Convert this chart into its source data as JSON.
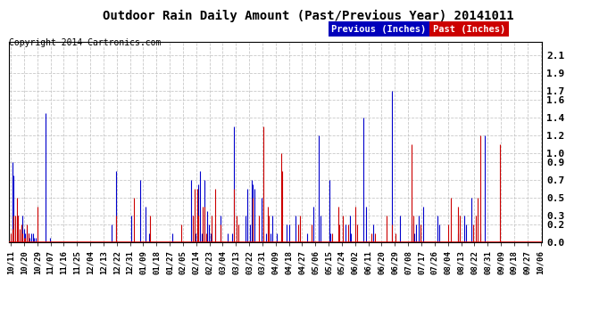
{
  "title": "Outdoor Rain Daily Amount (Past/Previous Year) 20141011",
  "copyright": "Copyright 2014 Cartronics.com",
  "legend_prev_label": "Previous (Inches)",
  "legend_past_label": "Past (Inches)",
  "legend_prev_bg": "#0000bb",
  "legend_past_bg": "#cc0000",
  "legend_text_color": "#ffffff",
  "yticks": [
    0.0,
    0.2,
    0.3,
    0.5,
    0.7,
    0.9,
    1.0,
    1.2,
    1.4,
    1.6,
    1.7,
    1.9,
    2.1
  ],
  "ylim": [
    0.0,
    2.25
  ],
  "background_color": "#ffffff",
  "plot_bg": "#ffffff",
  "grid_color": "#bbbbbb",
  "line_color_blue": "#0000cc",
  "line_color_red": "#cc0000",
  "xtick_labels": [
    "10/11",
    "10/20",
    "10/29",
    "11/07",
    "11/16",
    "11/25",
    "12/04",
    "12/13",
    "12/22",
    "12/31",
    "01/09",
    "01/18",
    "01/27",
    "02/05",
    "02/14",
    "02/23",
    "03/04",
    "03/13",
    "03/22",
    "03/31",
    "04/09",
    "04/18",
    "04/27",
    "05/06",
    "05/15",
    "05/24",
    "06/02",
    "06/11",
    "06/20",
    "06/29",
    "07/08",
    "07/17",
    "07/26",
    "08/04",
    "08/13",
    "08/22",
    "08/31",
    "09/09",
    "09/18",
    "09/27",
    "10/06"
  ],
  "blue_data": [
    0.0,
    0.9,
    0.75,
    0.0,
    0.0,
    0.3,
    0.1,
    0.15,
    0.3,
    0.15,
    0.1,
    0.15,
    0.1,
    0.05,
    0.1,
    0.1,
    0.05,
    0.05,
    0.0,
    0.0,
    0.0,
    0.0,
    0.0,
    0.0,
    1.45,
    0.0,
    0.0,
    0.05,
    0.0,
    0.0,
    0.0,
    0.0,
    0.0,
    0.0,
    0.0,
    0.0,
    0.0,
    0.0,
    0.0,
    0.0,
    0.0,
    0.0,
    0.0,
    0.0,
    0.0,
    0.0,
    0.0,
    0.0,
    0.0,
    0.0,
    0.0,
    0.0,
    0.0,
    0.0,
    0.0,
    0.0,
    0.0,
    0.0,
    0.0,
    0.0,
    0.0,
    0.0,
    0.0,
    0.0,
    0.0,
    0.0,
    0.0,
    0.0,
    0.0,
    0.2,
    0.0,
    0.0,
    0.8,
    0.0,
    0.0,
    0.0,
    0.0,
    0.0,
    0.0,
    0.0,
    0.0,
    0.0,
    0.3,
    0.0,
    0.0,
    0.0,
    0.0,
    0.0,
    0.7,
    0.0,
    0.0,
    0.0,
    0.4,
    0.0,
    0.1,
    0.0,
    0.0,
    0.0,
    0.0,
    0.0,
    0.0,
    0.0,
    0.0,
    0.0,
    0.0,
    0.0,
    0.0,
    0.0,
    0.0,
    0.0,
    0.1,
    0.0,
    0.0,
    0.0,
    0.0,
    0.0,
    0.0,
    0.0,
    0.0,
    0.0,
    0.0,
    0.0,
    0.0,
    0.7,
    0.3,
    0.0,
    0.1,
    0.0,
    0.65,
    0.8,
    0.1,
    0.0,
    0.7,
    0.0,
    0.35,
    0.2,
    0.1,
    0.0,
    0.0,
    0.2,
    0.0,
    0.0,
    0.0,
    0.3,
    0.0,
    0.0,
    0.0,
    0.0,
    0.1,
    0.0,
    0.0,
    0.1,
    1.3,
    0.0,
    0.0,
    0.0,
    0.0,
    0.0,
    0.0,
    0.0,
    0.3,
    0.6,
    0.0,
    0.2,
    0.7,
    0.65,
    0.6,
    0.0,
    0.0,
    0.0,
    0.0,
    0.5,
    0.0,
    0.0,
    0.1,
    0.0,
    0.0,
    0.1,
    0.3,
    0.0,
    0.0,
    0.1,
    0.0,
    0.0,
    0.0,
    0.0,
    0.0,
    0.0,
    0.2,
    0.0,
    0.2,
    0.0,
    0.0,
    0.0,
    0.3,
    0.0,
    0.0,
    0.0,
    0.0,
    0.0,
    0.0,
    0.0,
    0.1,
    0.0,
    0.0,
    0.0,
    0.4,
    0.0,
    0.0,
    0.0,
    1.2,
    0.3,
    0.0,
    0.0,
    0.0,
    0.0,
    0.0,
    0.7,
    0.1,
    0.0,
    0.0,
    0.0,
    0.0,
    0.0,
    0.0,
    0.0,
    0.0,
    0.0,
    0.2,
    0.0,
    0.0,
    0.3,
    0.1,
    0.0,
    0.0,
    0.0,
    0.0,
    0.0,
    0.0,
    0.0,
    1.4,
    0.0,
    0.4,
    0.0,
    0.0,
    0.0,
    0.0,
    0.2,
    0.0,
    0.0,
    0.0,
    0.0,
    0.0,
    0.0,
    0.0,
    0.0,
    0.0,
    0.0,
    0.0,
    0.0,
    1.7,
    0.0,
    0.0,
    0.0,
    0.0,
    0.3,
    0.0,
    0.0,
    0.0,
    0.0,
    0.0,
    0.0,
    0.0,
    0.2,
    0.0,
    0.1,
    0.2,
    0.0,
    0.3,
    0.1,
    0.0,
    0.4,
    0.0,
    0.0,
    0.0,
    0.0,
    0.0,
    0.0,
    0.0,
    0.0,
    0.0,
    0.3,
    0.2,
    0.0,
    0.0,
    0.0,
    0.0,
    0.0,
    0.0,
    0.0,
    0.0,
    0.0,
    0.0,
    0.0,
    0.0,
    0.1,
    0.0,
    0.0,
    0.0,
    0.3,
    0.2,
    0.0,
    0.0,
    0.0,
    0.5,
    0.0,
    0.0,
    0.0,
    0.0,
    0.0,
    0.1,
    0.0,
    0.0,
    1.2,
    0.0,
    0.0,
    0.0,
    0.0,
    0.0,
    0.0,
    0.0,
    0.0,
    0.0,
    0.0,
    0.0,
    0.0,
    0.0,
    0.0,
    0.0,
    0.0,
    0.0,
    0.0,
    0.0,
    0.0,
    0.0,
    0.0,
    0.0,
    0.0,
    0.0,
    0.0,
    0.0,
    0.0,
    0.0,
    0.0,
    0.0,
    0.0,
    0.0,
    0.0,
    0.0,
    0.0,
    0.0,
    0.0
  ],
  "red_data": [
    0.1,
    0.15,
    0.3,
    0.3,
    0.5,
    0.3,
    0.15,
    0.2,
    0.1,
    0.05,
    0.05,
    0.2,
    0.1,
    0.0,
    0.0,
    0.0,
    0.0,
    0.0,
    0.4,
    0.0,
    0.0,
    0.0,
    0.0,
    0.0,
    0.0,
    0.0,
    0.0,
    0.0,
    0.0,
    0.0,
    0.0,
    0.0,
    0.0,
    0.0,
    0.0,
    0.0,
    0.0,
    0.0,
    0.0,
    0.0,
    0.0,
    0.0,
    0.0,
    0.0,
    0.0,
    0.0,
    0.0,
    0.0,
    0.0,
    0.0,
    0.0,
    0.0,
    0.0,
    0.0,
    0.0,
    0.0,
    0.0,
    0.0,
    0.0,
    0.0,
    0.0,
    0.0,
    0.0,
    0.0,
    0.0,
    0.0,
    0.0,
    0.0,
    0.0,
    0.0,
    0.0,
    0.0,
    0.3,
    0.0,
    0.0,
    0.0,
    0.0,
    0.0,
    0.0,
    0.0,
    0.0,
    0.0,
    0.0,
    0.0,
    0.5,
    0.0,
    0.0,
    0.0,
    0.0,
    0.0,
    0.0,
    0.0,
    0.0,
    0.0,
    0.0,
    0.3,
    0.0,
    0.0,
    0.0,
    0.0,
    0.0,
    0.0,
    0.0,
    0.0,
    0.0,
    0.0,
    0.0,
    0.0,
    0.0,
    0.0,
    0.0,
    0.0,
    0.0,
    0.0,
    0.0,
    0.0,
    0.2,
    0.0,
    0.0,
    0.0,
    0.0,
    0.0,
    0.0,
    0.0,
    0.3,
    0.6,
    0.0,
    0.6,
    0.3,
    0.0,
    0.0,
    0.4,
    0.4,
    0.1,
    0.0,
    0.0,
    0.0,
    0.3,
    0.0,
    0.6,
    0.0,
    0.0,
    0.0,
    0.2,
    0.0,
    0.0,
    0.0,
    0.0,
    0.0,
    0.0,
    0.0,
    0.0,
    0.6,
    0.0,
    0.3,
    0.2,
    0.0,
    0.0,
    0.0,
    0.0,
    0.0,
    0.0,
    0.0,
    0.0,
    0.0,
    0.5,
    0.0,
    0.0,
    0.0,
    0.3,
    0.0,
    0.0,
    1.3,
    0.0,
    0.0,
    0.4,
    0.3,
    0.0,
    0.0,
    0.0,
    0.0,
    0.0,
    0.0,
    0.0,
    1.0,
    0.8,
    0.0,
    0.0,
    0.0,
    0.0,
    0.0,
    0.0,
    0.0,
    0.0,
    0.0,
    0.0,
    0.2,
    0.3,
    0.0,
    0.0,
    0.0,
    0.0,
    0.0,
    0.0,
    0.0,
    0.2,
    0.0,
    0.0,
    0.0,
    0.0,
    0.0,
    0.0,
    0.0,
    0.0,
    0.0,
    0.0,
    0.0,
    0.0,
    0.0,
    0.1,
    0.0,
    0.0,
    0.0,
    0.4,
    0.2,
    0.0,
    0.3,
    0.0,
    0.0,
    0.0,
    0.2,
    0.0,
    0.0,
    0.0,
    0.0,
    0.4,
    0.2,
    0.0,
    0.0,
    0.0,
    0.0,
    0.0,
    0.0,
    0.0,
    0.0,
    0.0,
    0.1,
    0.0,
    0.1,
    0.0,
    0.0,
    0.0,
    0.0,
    0.0,
    0.0,
    0.0,
    0.3,
    0.0,
    0.0,
    0.0,
    0.2,
    0.0,
    0.1,
    0.0,
    0.0,
    0.0,
    0.0,
    0.0,
    0.0,
    0.0,
    0.0,
    0.0,
    0.0,
    1.1,
    0.3,
    0.0,
    0.0,
    0.0,
    0.0,
    0.2,
    0.0,
    0.0,
    0.0,
    0.0,
    0.0,
    0.0,
    0.0,
    0.0,
    0.0,
    0.0,
    0.0,
    0.0,
    0.0,
    0.0,
    0.0,
    0.0,
    0.0,
    0.0,
    0.2,
    0.0,
    0.5,
    0.0,
    0.0,
    0.0,
    0.0,
    0.4,
    0.3,
    0.0,
    0.0,
    0.0,
    0.0,
    0.0,
    0.0,
    0.0,
    0.0,
    0.2,
    0.0,
    0.3,
    0.5,
    0.0,
    1.2,
    0.0,
    0.0,
    0.0,
    0.0,
    0.0,
    0.0,
    0.0,
    0.0,
    0.0,
    0.0,
    0.0,
    0.0,
    1.1,
    0.0,
    0.0,
    0.0,
    0.0,
    0.0,
    0.0,
    0.0,
    0.0,
    0.0,
    0.0,
    0.0,
    0.0,
    0.0,
    0.0,
    0.0,
    0.0,
    0.0,
    0.0,
    0.0,
    0.0,
    0.0,
    0.0,
    0.0,
    0.0,
    0.0,
    0.0,
    0.0,
    0.0
  ]
}
